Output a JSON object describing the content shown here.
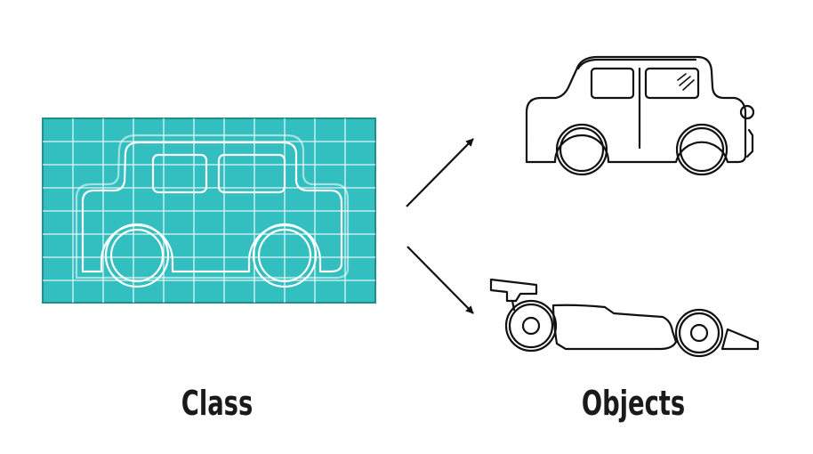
{
  "labels": {
    "class": "Class",
    "objects": "Objects"
  },
  "colors": {
    "blueprint_fill": "#33bfbf",
    "blueprint_lines": "#ffffff",
    "outline": "#111111",
    "text": "#1a1a1a"
  },
  "icons": {
    "class": "car-blueprint-icon",
    "object_1": "hatchback-car-icon",
    "object_2": "race-car-icon"
  }
}
